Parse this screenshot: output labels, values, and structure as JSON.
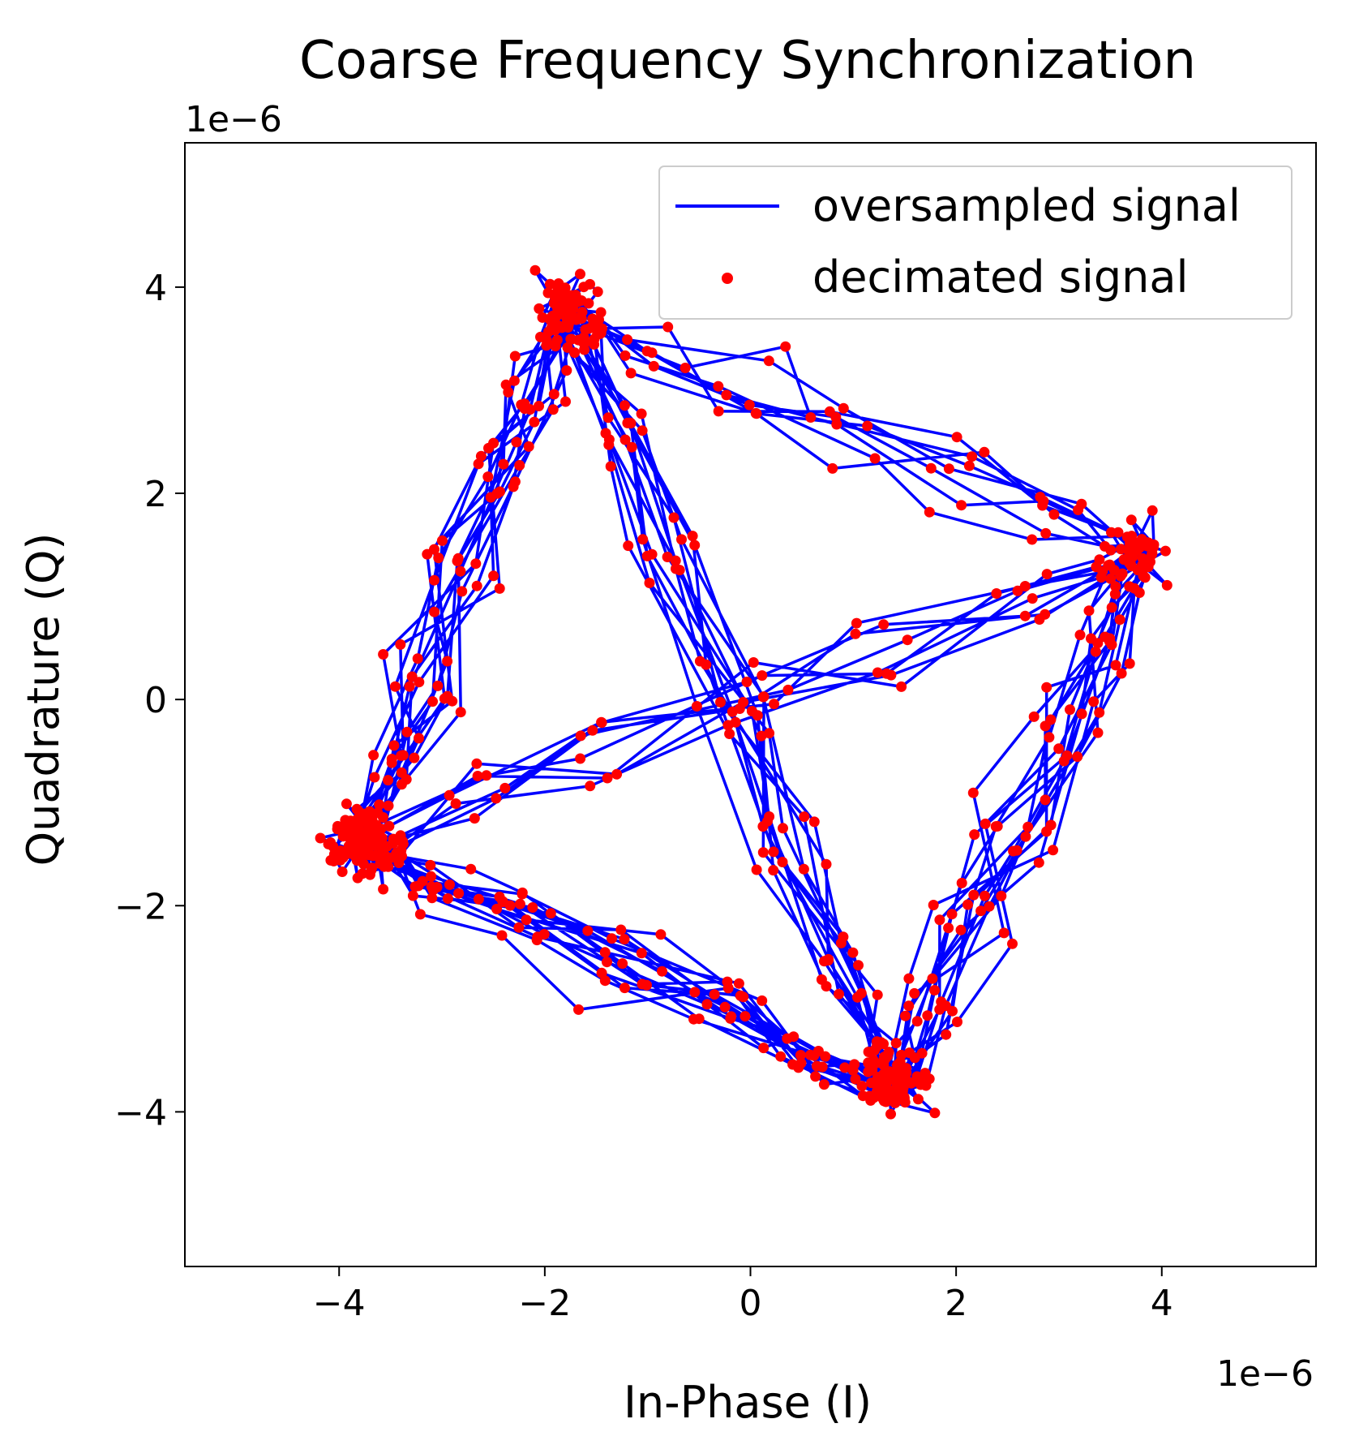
{
  "chart_data": {
    "type": "scatter",
    "title": "Coarse Frequency Synchronization",
    "xlabel": "In-Phase (I)",
    "ylabel": "Quadrature (Q)",
    "x_scale_label": "1e−6",
    "y_scale_label": "1e−6",
    "xlim": [
      -5.5,
      5.5
    ],
    "ylim": [
      -5.5,
      5.4
    ],
    "x_ticks": [
      -4,
      -2,
      0,
      2,
      4
    ],
    "y_ticks": [
      -4,
      -2,
      0,
      2,
      4
    ],
    "x_tick_labels": [
      "−4",
      "−2",
      "0",
      "2",
      "4"
    ],
    "y_tick_labels": [
      "−4",
      "−2",
      "0",
      "2",
      "4"
    ],
    "grid": false,
    "legend_position": "top-right",
    "constellation_points": [
      [
        3.8,
        1.4
      ],
      [
        -3.8,
        -1.4
      ],
      [
        1.4,
        -3.8
      ],
      [
        -1.8,
        3.8
      ]
    ],
    "series": [
      {
        "name": "oversampled signal",
        "style": "line",
        "color": "#0000ff",
        "description_hint": "QPSK-like constellation rotating trajectories; values in units of 1e-6",
        "values_x_range": [
          -5.1,
          5.1
        ],
        "values_y_range": [
          -5.1,
          4.9
        ]
      },
      {
        "name": "decimated signal",
        "style": "marker",
        "color": "#ff0000",
        "values_x_range": [
          -5.1,
          5.1
        ],
        "values_y_range": [
          -5.1,
          4.9
        ]
      }
    ]
  }
}
